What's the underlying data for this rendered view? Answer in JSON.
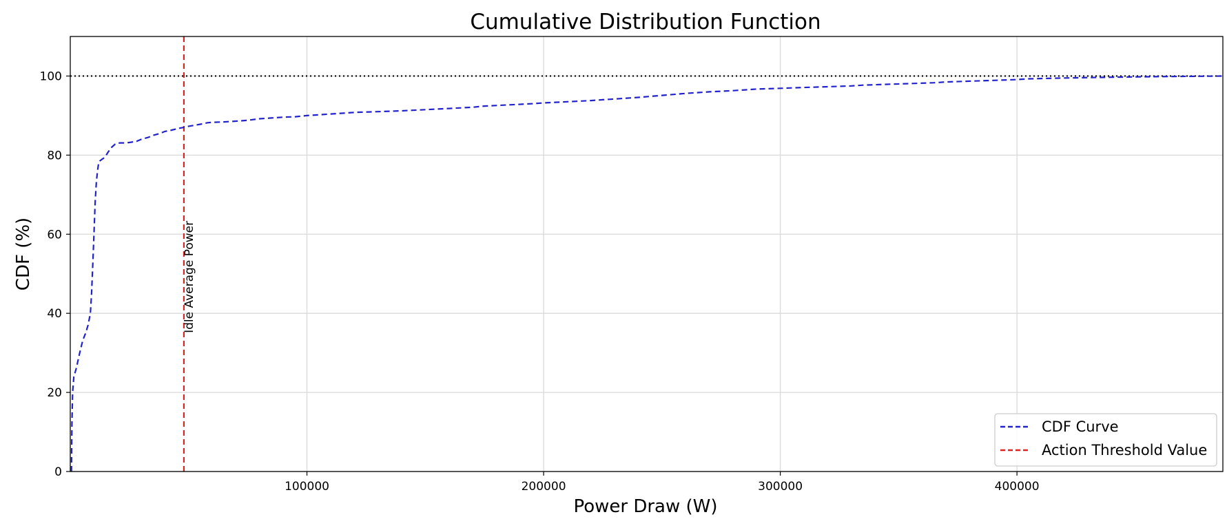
{
  "chart_data": {
    "type": "line",
    "title": "Cumulative Distribution Function",
    "xlabel": "Power Draw (W)",
    "ylabel": "CDF (%)",
    "xlim": [
      0,
      487000
    ],
    "ylim": [
      0,
      110
    ],
    "grid": true,
    "x_ticks": [
      100000,
      200000,
      300000,
      400000
    ],
    "x_tick_labels": [
      "100000",
      "200000",
      "300000",
      "400000"
    ],
    "y_ticks": [
      0,
      20,
      40,
      60,
      80,
      100
    ],
    "y_tick_labels": [
      "0",
      "20",
      "40",
      "60",
      "80",
      "100"
    ],
    "legend_position": "lower right",
    "series": [
      {
        "name": "CDF Curve",
        "color": "#2222cc",
        "style": "dashed",
        "x": [
          500,
          700,
          1000,
          1500,
          2500,
          4000,
          5000,
          5500,
          6500,
          7500,
          8500,
          9000,
          9500,
          10000,
          10500,
          11000,
          11500,
          12000,
          12500,
          13000,
          14000,
          15000,
          16000,
          17500,
          19000,
          20000,
          21000,
          23000,
          25000,
          28000,
          30000,
          33000,
          35000,
          38000,
          40000,
          42000,
          44000,
          46000,
          48000,
          50000,
          52000,
          55000,
          58000,
          60000,
          65000,
          70000,
          75000,
          80000,
          85000,
          90000,
          95000,
          100000,
          105000,
          110000,
          115000,
          120000,
          130000,
          140000,
          150000,
          160000,
          170000,
          175000,
          185000,
          195000,
          200000,
          210000,
          220000,
          225000,
          230000,
          240000,
          250000,
          260000,
          270000,
          280000,
          285000,
          290000,
          300000,
          310000,
          320000,
          330000,
          335000,
          345000,
          355000,
          365000,
          370000,
          380000,
          390000,
          400000,
          405000,
          420000,
          440000,
          460000,
          480000,
          487000
        ],
        "y": [
          0,
          12,
          20,
          24,
          26,
          30,
          32.5,
          33.5,
          35,
          37,
          40,
          45,
          52,
          60,
          68,
          73,
          76,
          78,
          78.5,
          78.8,
          79.2,
          79.8,
          80.8,
          82,
          82.8,
          83,
          83.1,
          83.1,
          83.2,
          83.5,
          84,
          84.5,
          85,
          85.5,
          86,
          86.2,
          86.5,
          86.8,
          87,
          87.3,
          87.5,
          87.8,
          88.2,
          88.3,
          88.4,
          88.6,
          88.8,
          89.2,
          89.4,
          89.6,
          89.7,
          90,
          90.2,
          90.4,
          90.6,
          90.8,
          91,
          91.2,
          91.5,
          91.8,
          92.1,
          92.4,
          92.7,
          93,
          93.2,
          93.5,
          93.8,
          94,
          94.2,
          94.6,
          95.1,
          95.6,
          96,
          96.3,
          96.5,
          96.7,
          96.9,
          97.1,
          97.3,
          97.5,
          97.7,
          97.9,
          98.1,
          98.3,
          98.5,
          98.7,
          98.9,
          99.1,
          99.3,
          99.5,
          99.7,
          99.85,
          99.95,
          100
        ]
      }
    ],
    "reference_lines": [
      {
        "name": "Action Threshold Value",
        "orientation": "vertical",
        "x": 48000,
        "color": "#dd2222",
        "style": "dashed"
      },
      {
        "orientation": "horizontal",
        "y": 100,
        "color": "#000000",
        "style": "dotted"
      }
    ],
    "annotations": [
      {
        "text": "Idle Average Power",
        "x": 48000,
        "y": 35,
        "rotation": -90
      }
    ]
  }
}
